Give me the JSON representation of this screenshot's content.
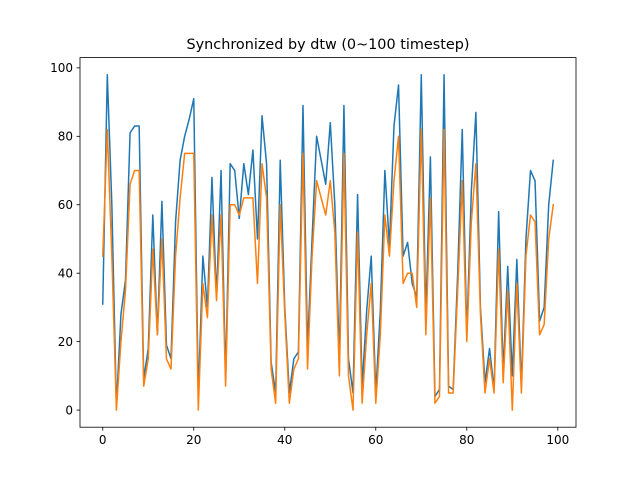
{
  "chart_data": {
    "type": "line",
    "title": "Synchronized by dtw (0~100 timestep)",
    "xlabel": "",
    "ylabel": "",
    "xlim": [
      -5,
      104
    ],
    "ylim": [
      -5,
      103
    ],
    "xticks": [
      0,
      20,
      40,
      60,
      80,
      100
    ],
    "yticks": [
      0,
      20,
      40,
      60,
      80,
      100
    ],
    "grid": false,
    "legend": "none",
    "x": [
      0,
      1,
      2,
      3,
      4,
      5,
      6,
      7,
      8,
      9,
      10,
      11,
      12,
      13,
      14,
      15,
      16,
      17,
      18,
      19,
      20,
      21,
      22,
      23,
      24,
      25,
      26,
      27,
      28,
      29,
      30,
      31,
      32,
      33,
      34,
      35,
      36,
      37,
      38,
      39,
      40,
      41,
      42,
      43,
      44,
      45,
      46,
      47,
      48,
      49,
      50,
      51,
      52,
      53,
      54,
      55,
      56,
      57,
      58,
      59,
      60,
      61,
      62,
      63,
      64,
      65,
      66,
      67,
      68,
      69,
      70,
      71,
      72,
      73,
      74,
      75,
      76,
      77,
      78,
      79,
      80,
      81,
      82,
      83,
      84,
      85,
      86,
      87,
      88,
      89,
      90,
      91,
      92,
      93,
      94,
      95,
      96,
      97,
      98,
      99
    ],
    "series": [
      {
        "color": "#1f77b4",
        "values": [
          31,
          98,
          60,
          1,
          28,
          38,
          81,
          83,
          83,
          9,
          18,
          57,
          22,
          61,
          19,
          15,
          55,
          73,
          80,
          85,
          91,
          4,
          45,
          30,
          68,
          33,
          70,
          9,
          72,
          70,
          56,
          72,
          63,
          76,
          50,
          86,
          72,
          14,
          5,
          73,
          30,
          5,
          15,
          17,
          89,
          18,
          50,
          80,
          73,
          66,
          84,
          60,
          15,
          89,
          15,
          5,
          63,
          7,
          29,
          45,
          5,
          29,
          70,
          48,
          83,
          95,
          45,
          49,
          37,
          33,
          98,
          27,
          74,
          4,
          6,
          98,
          7,
          6,
          40,
          82,
          22,
          64,
          87,
          30,
          8,
          18,
          6,
          58,
          11,
          42,
          10,
          44,
          7,
          50,
          70,
          67,
          26,
          30,
          60,
          73
        ]
      },
      {
        "color": "#ff7f0e",
        "values": [
          45,
          82,
          45,
          0,
          20,
          35,
          66,
          70,
          70,
          7,
          15,
          47,
          22,
          50,
          15,
          12,
          45,
          62,
          75,
          75,
          75,
          0,
          37,
          27,
          57,
          32,
          57,
          7,
          60,
          60,
          57,
          62,
          62,
          62,
          37,
          72,
          62,
          12,
          2,
          60,
          28,
          2,
          12,
          15,
          75,
          12,
          45,
          67,
          62,
          57,
          67,
          52,
          10,
          75,
          10,
          0,
          52,
          2,
          22,
          37,
          2,
          22,
          57,
          45,
          67,
          80,
          37,
          40,
          40,
          30,
          82,
          22,
          62,
          2,
          4,
          82,
          5,
          5,
          35,
          67,
          20,
          55,
          72,
          28,
          5,
          15,
          5,
          47,
          8,
          35,
          0,
          37,
          5,
          45,
          57,
          55,
          22,
          25,
          50,
          60
        ]
      }
    ]
  }
}
